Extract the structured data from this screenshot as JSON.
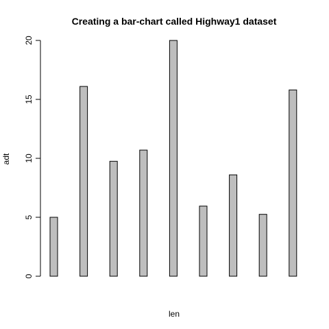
{
  "chart_data": {
    "type": "bar",
    "title": "Creating a bar-chart called Highway1 dataset",
    "xlabel": "len",
    "ylabel": "adt",
    "categories": [
      "",
      "",
      "",
      "",
      "",
      "",
      "",
      "",
      ""
    ],
    "values": [
      5.0,
      16.1,
      9.75,
      10.7,
      20.0,
      5.95,
      8.6,
      5.25,
      15.8
    ],
    "ylim": [
      0,
      20
    ],
    "yticks": [
      0,
      5,
      10,
      15,
      20
    ],
    "ytick_labels": [
      "0",
      "5",
      "10",
      "15",
      "20"
    ],
    "grid": false,
    "legend": "none",
    "colors": {
      "bar_fill": "#bebebe",
      "bar_stroke": "#000000",
      "axis": "#000000",
      "text": "#000000"
    }
  }
}
